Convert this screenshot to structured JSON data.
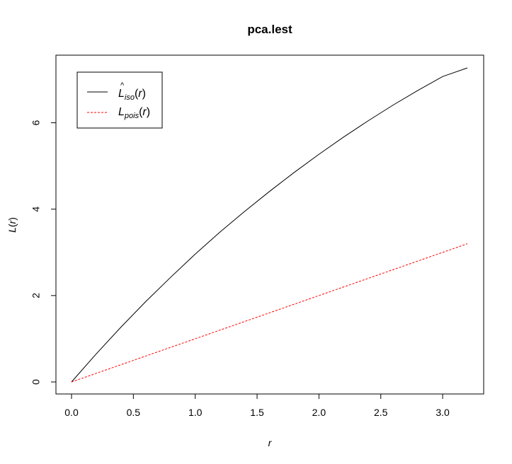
{
  "chart_data": {
    "type": "line",
    "title": "pca.lest",
    "xlabel": "r",
    "ylabel_main": "L",
    "ylabel_arg": "r",
    "xlim": [
      0,
      3.2
    ],
    "ylim": [
      0,
      7.27
    ],
    "xticks": [
      0.0,
      0.5,
      1.0,
      1.5,
      2.0,
      2.5,
      3.0
    ],
    "xtick_labels": [
      "0.0",
      "0.5",
      "1.0",
      "1.5",
      "2.0",
      "2.5",
      "3.0"
    ],
    "yticks": [
      0,
      2,
      4,
      6
    ],
    "ytick_labels": [
      "0",
      "2",
      "4",
      "6"
    ],
    "grid": false,
    "legend_position": "top-left",
    "series": [
      {
        "name_main": "L",
        "name_hat": "^",
        "name_sub": "iso",
        "name_arg": "r",
        "color": "#000000",
        "dash": "solid",
        "x": [
          0,
          0.2,
          0.4,
          0.6,
          0.8,
          1.0,
          1.2,
          1.4,
          1.6,
          1.8,
          2.0,
          2.2,
          2.4,
          2.6,
          2.8,
          3.0,
          3.2
        ],
        "y": [
          0,
          0.65,
          1.27,
          1.86,
          2.42,
          2.96,
          3.47,
          3.95,
          4.41,
          4.85,
          5.27,
          5.67,
          6.05,
          6.41,
          6.75,
          7.07,
          7.27
        ]
      },
      {
        "name_main": "L",
        "name_sub": "pois",
        "name_arg": "r",
        "color": "#ff0000",
        "dash": "dashed",
        "x": [
          0,
          3.2
        ],
        "y": [
          0,
          3.2
        ]
      }
    ]
  }
}
